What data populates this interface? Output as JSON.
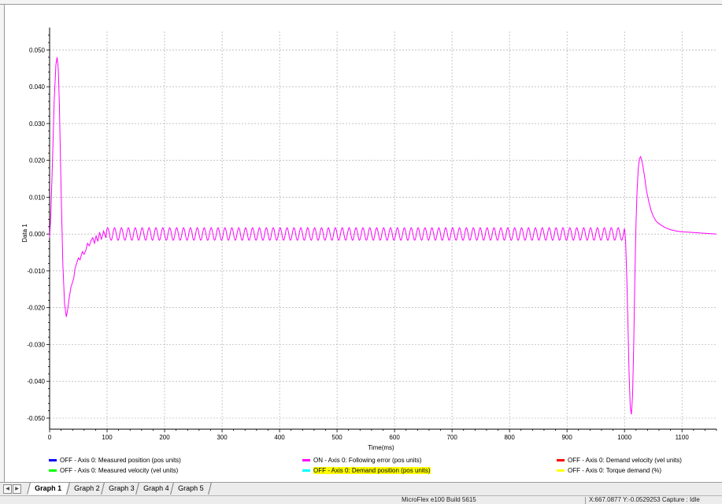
{
  "chart_data": {
    "type": "line",
    "xlabel": "Time(ms)",
    "ylabel": "Data 1",
    "xlim": [
      0,
      1160
    ],
    "ylim": [
      -0.053,
      0.055
    ],
    "x_ticks": [
      0,
      100,
      200,
      300,
      400,
      500,
      600,
      700,
      800,
      900,
      1000,
      1100
    ],
    "y_ticks": [
      0.05,
      0.04,
      0.03,
      0.02,
      0.01,
      0.0,
      -0.01,
      -0.02,
      -0.03,
      -0.04,
      -0.05
    ],
    "x_tick_labels": [
      "0",
      "100",
      "200",
      "300",
      "400",
      "500",
      "600",
      "700",
      "800",
      "900",
      "1000",
      "1100"
    ],
    "y_tick_labels": [
      "0.050",
      "0.040",
      "0.030",
      "0.020",
      "0.010",
      "0.000",
      "-0.010",
      "-0.020",
      "-0.030",
      "-0.040",
      "-0.050"
    ],
    "grid": true,
    "series": [
      {
        "name": "ON - Axis 0: Following error (pos units)",
        "color": "#ff00ff",
        "x": [
          0,
          2,
          5,
          8,
          11,
          13,
          15,
          17,
          20,
          23,
          26,
          29,
          31,
          34,
          37,
          40,
          42,
          44,
          47,
          50,
          53,
          55,
          57,
          60,
          63,
          66,
          69,
          72,
          75,
          78,
          81,
          84,
          87,
          90,
          94,
          98,
          1000,
          1002,
          1004,
          1006,
          1008,
          1010,
          1012,
          1014,
          1016,
          1018,
          1020,
          1022,
          1024,
          1026,
          1028,
          1030,
          1032,
          1035,
          1038,
          1042,
          1046,
          1050,
          1055,
          1060,
          1070,
          1080,
          1090,
          1100,
          1110,
          1120,
          1130,
          1140,
          1150,
          1160
        ],
        "y": [
          -0.001,
          0.005,
          0.02,
          0.036,
          0.046,
          0.048,
          0.045,
          0.035,
          0.012,
          -0.008,
          -0.019,
          -0.0225,
          -0.021,
          -0.0175,
          -0.0145,
          -0.013,
          -0.012,
          -0.0095,
          -0.008,
          -0.0065,
          -0.007,
          -0.0058,
          -0.0048,
          -0.0055,
          -0.0044,
          -0.0025,
          -0.0032,
          -0.0018,
          -0.001,
          -0.0025,
          -0.0005,
          -0.002,
          0.0005,
          -0.0015,
          0.0008,
          -0.001,
          0.0015,
          -0.002,
          -0.012,
          -0.025,
          -0.038,
          -0.047,
          -0.049,
          -0.044,
          -0.03,
          -0.012,
          0.003,
          0.012,
          0.018,
          0.0205,
          0.021,
          0.02,
          0.0185,
          0.0155,
          0.012,
          0.009,
          0.0065,
          0.0048,
          0.0035,
          0.0028,
          0.0018,
          0.0012,
          0.0008,
          0.0006,
          0.0005,
          0.0004,
          0.0003,
          0.0002,
          0.0001,
          0.0
        ],
        "oscillation": {
          "from_ms": 98,
          "to_ms": 1000,
          "period_ms": 12,
          "amplitude": 0.0017
        }
      }
    ],
    "legend": {
      "placement": "bottom",
      "items": [
        {
          "label": "OFF - Axis 0: Measured position (pos units)",
          "color": "#0000ff",
          "highlight": false
        },
        {
          "label": "ON - Axis 0: Following error (pos units)",
          "color": "#ff00ff",
          "highlight": false
        },
        {
          "label": "OFF - Axis 0: Demand velocity (vel units)",
          "color": "#ff0000",
          "highlight": false
        },
        {
          "label": "OFF - Axis 0: Measured velocity (vel units)",
          "color": "#00ff00",
          "highlight": false
        },
        {
          "label": "OFF - Axis 0: Demand position (pos units)",
          "color": "#00ffff",
          "highlight": true
        },
        {
          "label": "OFF - Axis 0: Torque demand (%)",
          "color": "#ffff00",
          "highlight": false
        }
      ]
    }
  },
  "tabs": {
    "items": [
      "Graph 1",
      "Graph 2",
      "Graph 3",
      "Graph 4",
      "Graph 5"
    ],
    "active": "Graph 1",
    "nav_left": "◀",
    "nav_right": "▶"
  },
  "status": {
    "app_build": "MicroFlex e100 Build 5615",
    "coords": "X:667.0877  Y:-0.0529253  Capture : Idle"
  },
  "colors": {
    "trace": "#ff00ff",
    "grid": "#a0a0a0",
    "highlight": "#ffff00"
  }
}
